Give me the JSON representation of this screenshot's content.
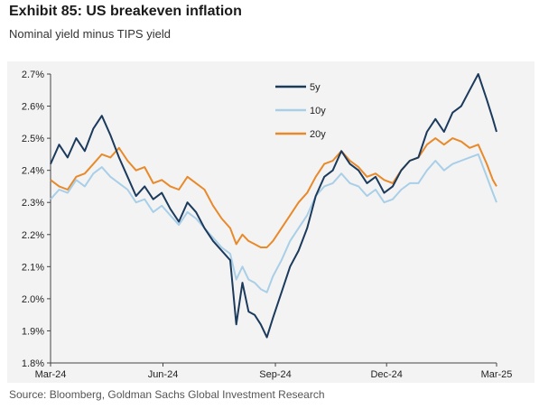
{
  "header": {
    "title": "Exhibit 85: US breakeven inflation",
    "subtitle": "Nominal yield minus TIPS yield"
  },
  "footer": {
    "source": "Source: Bloomberg, Goldman Sachs Global Investment Research"
  },
  "chart_data": {
    "type": "line",
    "title": "Exhibit 85: US breakeven inflation",
    "subtitle": "Nominal yield minus TIPS yield",
    "xlabel": "",
    "ylabel": "",
    "ylim": [
      1.8,
      2.7
    ],
    "xlim": [
      "2024-03-01",
      "2025-03-01"
    ],
    "y_ticks": [
      "1.8%",
      "1.9%",
      "2.0%",
      "2.1%",
      "2.2%",
      "2.3%",
      "2.4%",
      "2.5%",
      "2.6%",
      "2.7%"
    ],
    "x_ticks": [
      {
        "label": "Mar-24",
        "date": "2024-03-01"
      },
      {
        "label": "Jun-24",
        "date": "2024-06-01"
      },
      {
        "label": "Sep-24",
        "date": "2024-09-01"
      },
      {
        "label": "Dec-24",
        "date": "2024-12-01"
      },
      {
        "label": "Mar-25",
        "date": "2025-03-01"
      }
    ],
    "grid": false,
    "legend": "top-center",
    "series": [
      {
        "name": "5y",
        "color": "#1b3a5c",
        "points": [
          [
            "2024-03-01",
            2.42
          ],
          [
            "2024-03-08",
            2.48
          ],
          [
            "2024-03-15",
            2.44
          ],
          [
            "2024-03-22",
            2.5
          ],
          [
            "2024-03-29",
            2.46
          ],
          [
            "2024-04-05",
            2.53
          ],
          [
            "2024-04-12",
            2.57
          ],
          [
            "2024-04-19",
            2.51
          ],
          [
            "2024-04-26",
            2.44
          ],
          [
            "2024-05-03",
            2.38
          ],
          [
            "2024-05-10",
            2.32
          ],
          [
            "2024-05-17",
            2.35
          ],
          [
            "2024-05-24",
            2.31
          ],
          [
            "2024-05-31",
            2.33
          ],
          [
            "2024-06-07",
            2.28
          ],
          [
            "2024-06-14",
            2.24
          ],
          [
            "2024-06-21",
            2.3
          ],
          [
            "2024-06-28",
            2.27
          ],
          [
            "2024-07-05",
            2.22
          ],
          [
            "2024-07-12",
            2.18
          ],
          [
            "2024-07-19",
            2.15
          ],
          [
            "2024-07-26",
            2.12
          ],
          [
            "2024-07-31",
            1.92
          ],
          [
            "2024-08-05",
            2.05
          ],
          [
            "2024-08-10",
            1.96
          ],
          [
            "2024-08-15",
            1.95
          ],
          [
            "2024-08-20",
            1.92
          ],
          [
            "2024-08-25",
            1.88
          ],
          [
            "2024-08-30",
            1.94
          ],
          [
            "2024-09-06",
            2.02
          ],
          [
            "2024-09-13",
            2.1
          ],
          [
            "2024-09-20",
            2.15
          ],
          [
            "2024-09-27",
            2.22
          ],
          [
            "2024-10-04",
            2.32
          ],
          [
            "2024-10-11",
            2.38
          ],
          [
            "2024-10-18",
            2.4
          ],
          [
            "2024-10-25",
            2.46
          ],
          [
            "2024-11-01",
            2.42
          ],
          [
            "2024-11-08",
            2.4
          ],
          [
            "2024-11-15",
            2.36
          ],
          [
            "2024-11-22",
            2.38
          ],
          [
            "2024-11-29",
            2.33
          ],
          [
            "2024-12-06",
            2.35
          ],
          [
            "2024-12-13",
            2.4
          ],
          [
            "2024-12-20",
            2.43
          ],
          [
            "2024-12-27",
            2.44
          ],
          [
            "2025-01-03",
            2.52
          ],
          [
            "2025-01-10",
            2.56
          ],
          [
            "2025-01-17",
            2.52
          ],
          [
            "2025-01-24",
            2.58
          ],
          [
            "2025-01-31",
            2.6
          ],
          [
            "2025-02-07",
            2.65
          ],
          [
            "2025-02-14",
            2.7
          ],
          [
            "2025-02-21",
            2.62
          ],
          [
            "2025-02-26",
            2.56
          ],
          [
            "2025-03-01",
            2.52
          ]
        ]
      },
      {
        "name": "10y",
        "color": "#a9cfe8",
        "points": [
          [
            "2024-03-01",
            2.31
          ],
          [
            "2024-03-08",
            2.34
          ],
          [
            "2024-03-15",
            2.33
          ],
          [
            "2024-03-22",
            2.37
          ],
          [
            "2024-03-29",
            2.35
          ],
          [
            "2024-04-05",
            2.39
          ],
          [
            "2024-04-12",
            2.41
          ],
          [
            "2024-04-19",
            2.38
          ],
          [
            "2024-04-26",
            2.36
          ],
          [
            "2024-05-03",
            2.34
          ],
          [
            "2024-05-10",
            2.3
          ],
          [
            "2024-05-17",
            2.31
          ],
          [
            "2024-05-24",
            2.27
          ],
          [
            "2024-05-31",
            2.29
          ],
          [
            "2024-06-07",
            2.26
          ],
          [
            "2024-06-14",
            2.23
          ],
          [
            "2024-06-21",
            2.27
          ],
          [
            "2024-06-28",
            2.25
          ],
          [
            "2024-07-05",
            2.22
          ],
          [
            "2024-07-12",
            2.19
          ],
          [
            "2024-07-19",
            2.16
          ],
          [
            "2024-07-26",
            2.14
          ],
          [
            "2024-07-31",
            2.06
          ],
          [
            "2024-08-05",
            2.1
          ],
          [
            "2024-08-10",
            2.06
          ],
          [
            "2024-08-15",
            2.05
          ],
          [
            "2024-08-20",
            2.03
          ],
          [
            "2024-08-25",
            2.02
          ],
          [
            "2024-08-30",
            2.07
          ],
          [
            "2024-09-06",
            2.12
          ],
          [
            "2024-09-13",
            2.18
          ],
          [
            "2024-09-20",
            2.22
          ],
          [
            "2024-09-27",
            2.26
          ],
          [
            "2024-10-04",
            2.32
          ],
          [
            "2024-10-11",
            2.35
          ],
          [
            "2024-10-18",
            2.36
          ],
          [
            "2024-10-25",
            2.39
          ],
          [
            "2024-11-01",
            2.36
          ],
          [
            "2024-11-08",
            2.35
          ],
          [
            "2024-11-15",
            2.32
          ],
          [
            "2024-11-22",
            2.34
          ],
          [
            "2024-11-29",
            2.3
          ],
          [
            "2024-12-06",
            2.31
          ],
          [
            "2024-12-13",
            2.34
          ],
          [
            "2024-12-20",
            2.36
          ],
          [
            "2024-12-27",
            2.36
          ],
          [
            "2025-01-03",
            2.4
          ],
          [
            "2025-01-10",
            2.43
          ],
          [
            "2025-01-17",
            2.4
          ],
          [
            "2025-01-24",
            2.42
          ],
          [
            "2025-01-31",
            2.43
          ],
          [
            "2025-02-07",
            2.44
          ],
          [
            "2025-02-14",
            2.45
          ],
          [
            "2025-02-21",
            2.38
          ],
          [
            "2025-02-26",
            2.33
          ],
          [
            "2025-03-01",
            2.3
          ]
        ]
      },
      {
        "name": "20y",
        "color": "#e8892a",
        "points": [
          [
            "2024-03-01",
            2.37
          ],
          [
            "2024-03-08",
            2.35
          ],
          [
            "2024-03-15",
            2.34
          ],
          [
            "2024-03-22",
            2.38
          ],
          [
            "2024-03-29",
            2.39
          ],
          [
            "2024-04-05",
            2.42
          ],
          [
            "2024-04-12",
            2.45
          ],
          [
            "2024-04-19",
            2.44
          ],
          [
            "2024-04-26",
            2.47
          ],
          [
            "2024-05-03",
            2.43
          ],
          [
            "2024-05-10",
            2.4
          ],
          [
            "2024-05-17",
            2.41
          ],
          [
            "2024-05-24",
            2.36
          ],
          [
            "2024-05-31",
            2.37
          ],
          [
            "2024-06-07",
            2.35
          ],
          [
            "2024-06-14",
            2.34
          ],
          [
            "2024-06-21",
            2.38
          ],
          [
            "2024-06-28",
            2.36
          ],
          [
            "2024-07-05",
            2.34
          ],
          [
            "2024-07-12",
            2.29
          ],
          [
            "2024-07-19",
            2.25
          ],
          [
            "2024-07-26",
            2.22
          ],
          [
            "2024-07-31",
            2.17
          ],
          [
            "2024-08-05",
            2.2
          ],
          [
            "2024-08-10",
            2.18
          ],
          [
            "2024-08-15",
            2.17
          ],
          [
            "2024-08-20",
            2.16
          ],
          [
            "2024-08-25",
            2.16
          ],
          [
            "2024-08-30",
            2.18
          ],
          [
            "2024-09-06",
            2.22
          ],
          [
            "2024-09-13",
            2.26
          ],
          [
            "2024-09-20",
            2.3
          ],
          [
            "2024-09-27",
            2.33
          ],
          [
            "2024-10-04",
            2.38
          ],
          [
            "2024-10-11",
            2.42
          ],
          [
            "2024-10-18",
            2.43
          ],
          [
            "2024-10-25",
            2.46
          ],
          [
            "2024-11-01",
            2.43
          ],
          [
            "2024-11-08",
            2.41
          ],
          [
            "2024-11-15",
            2.38
          ],
          [
            "2024-11-22",
            2.39
          ],
          [
            "2024-11-29",
            2.37
          ],
          [
            "2024-12-06",
            2.36
          ],
          [
            "2024-12-13",
            2.4
          ],
          [
            "2024-12-20",
            2.43
          ],
          [
            "2024-12-27",
            2.44
          ],
          [
            "2025-01-03",
            2.48
          ],
          [
            "2025-01-10",
            2.5
          ],
          [
            "2025-01-17",
            2.48
          ],
          [
            "2025-01-24",
            2.5
          ],
          [
            "2025-01-31",
            2.49
          ],
          [
            "2025-02-07",
            2.47
          ],
          [
            "2025-02-14",
            2.48
          ],
          [
            "2025-02-21",
            2.42
          ],
          [
            "2025-02-26",
            2.37
          ],
          [
            "2025-03-01",
            2.35
          ]
        ]
      }
    ]
  }
}
